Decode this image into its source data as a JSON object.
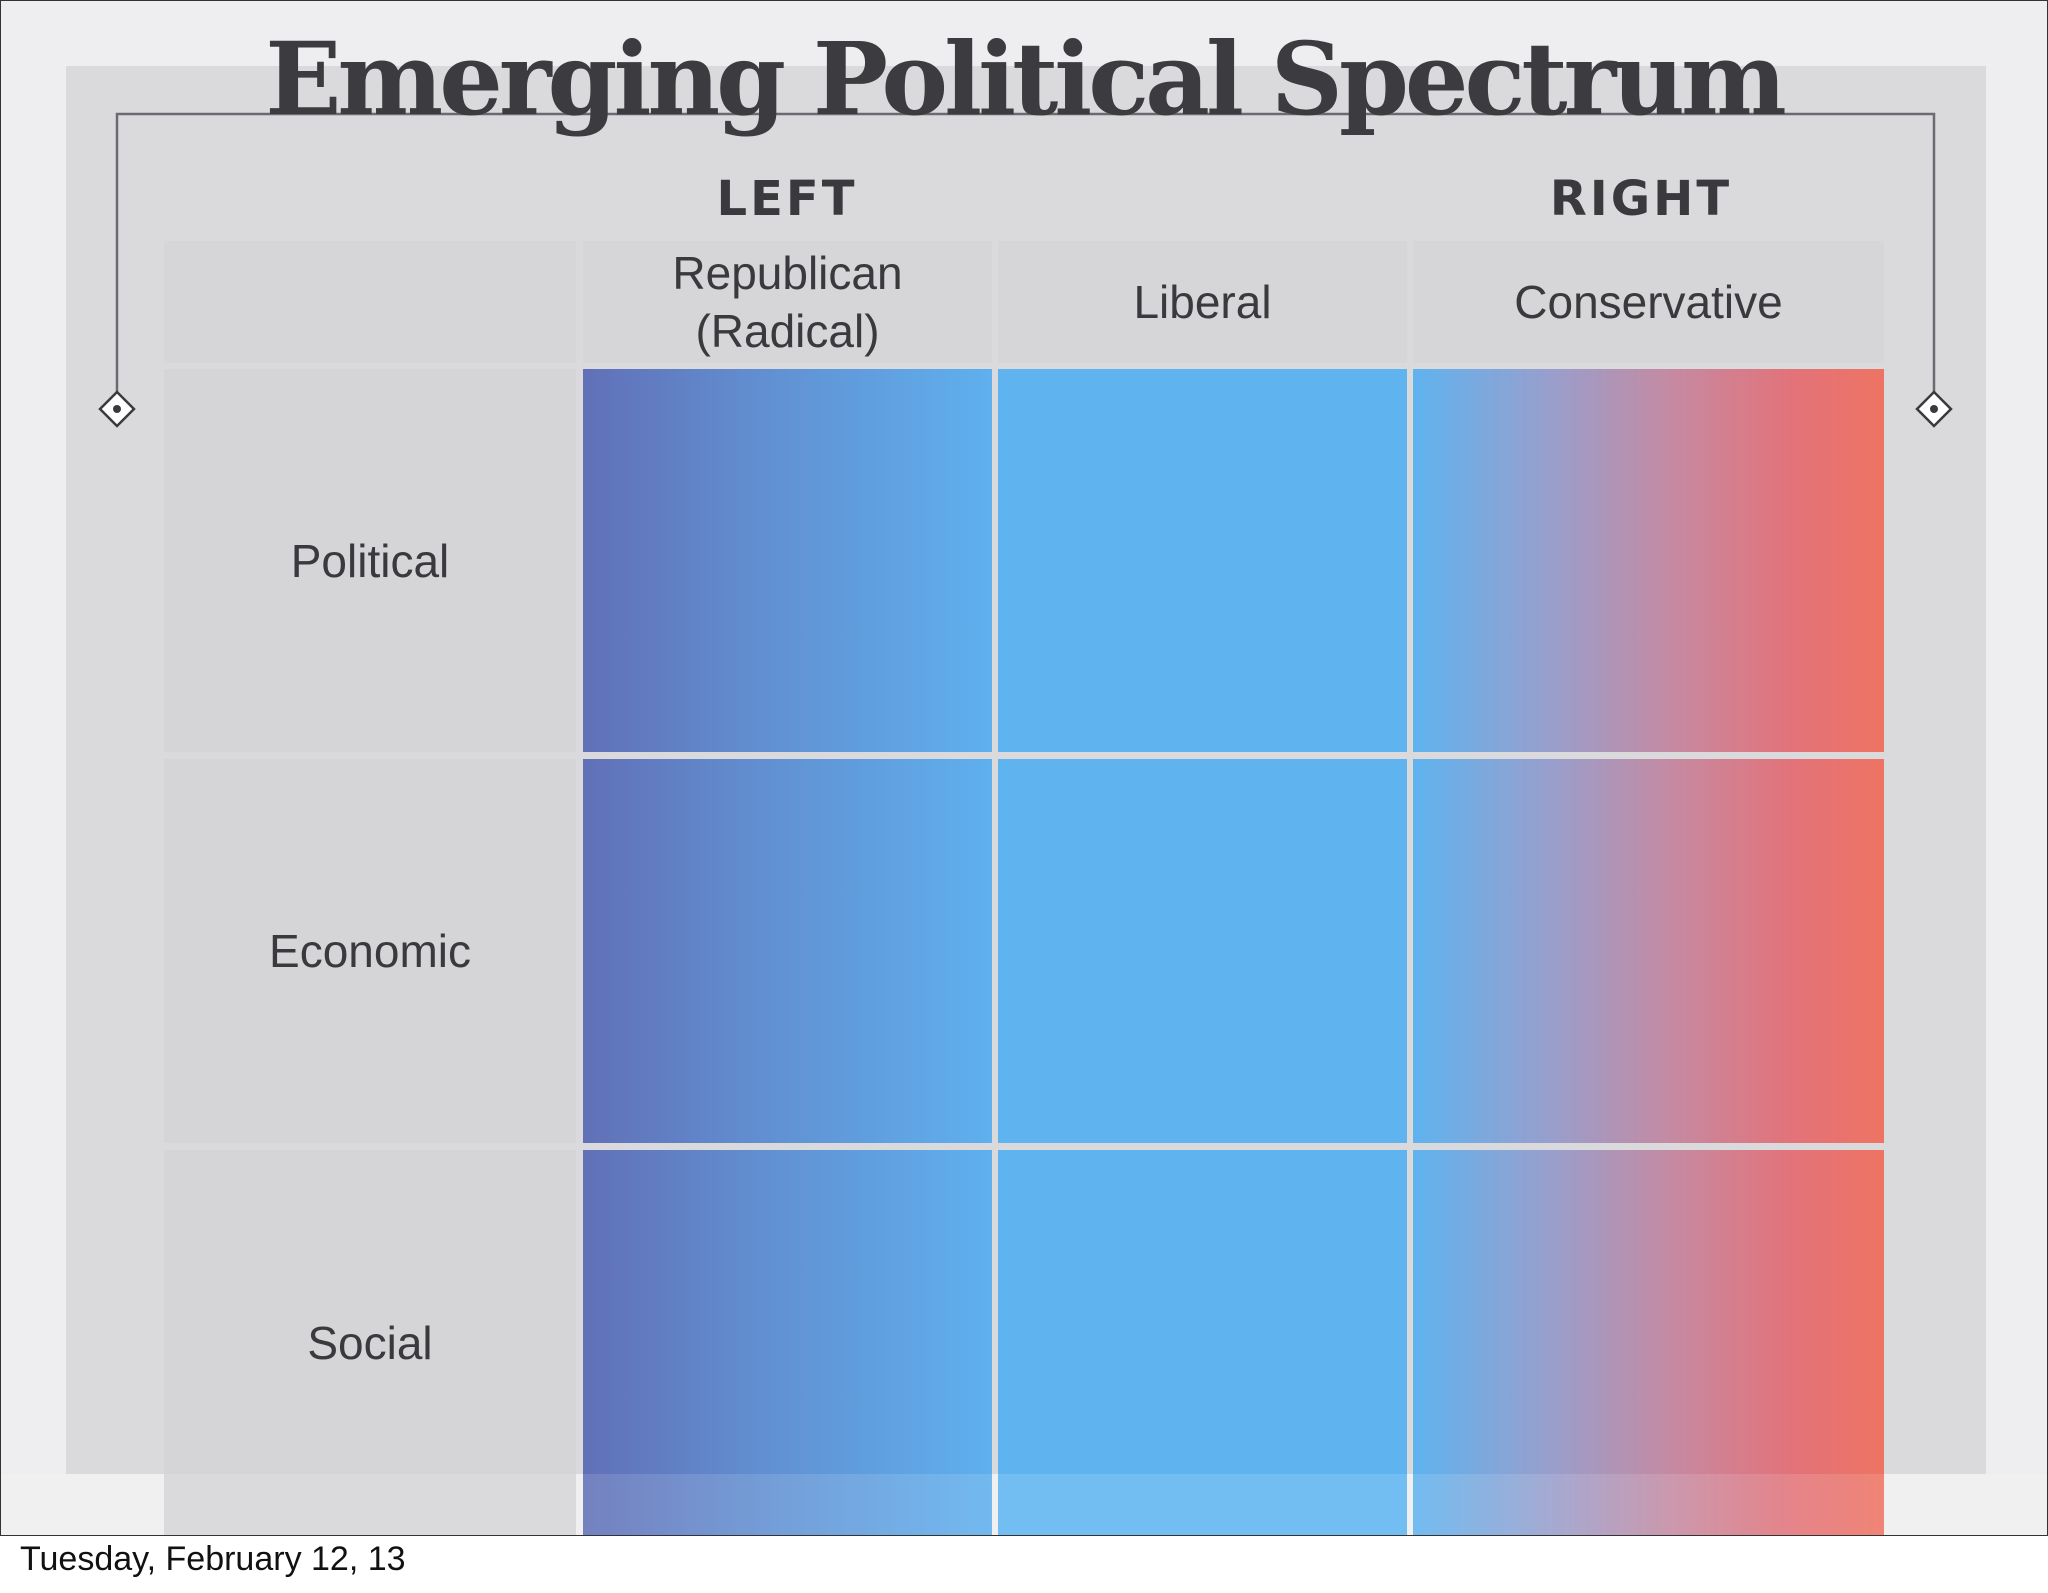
{
  "slide": {
    "title": "Emerging Political Spectrum",
    "left_label": "LEFT",
    "right_label": "RIGHT",
    "columns": [
      {
        "line1": "Republican",
        "line2": "(Radical)"
      },
      {
        "line1": "Liberal",
        "line2": ""
      },
      {
        "line1": "Conservative",
        "line2": ""
      }
    ],
    "rows": [
      "Political",
      "Economic",
      "Social"
    ],
    "colors": {
      "left_start": "#6170b7",
      "left_end": "#5fb0ee",
      "middle": "#5fb4f0",
      "right_start": "#5fb3ef",
      "right_end": "#ee7363"
    }
  },
  "footer": {
    "date": "Tuesday, February 12, 13"
  }
}
